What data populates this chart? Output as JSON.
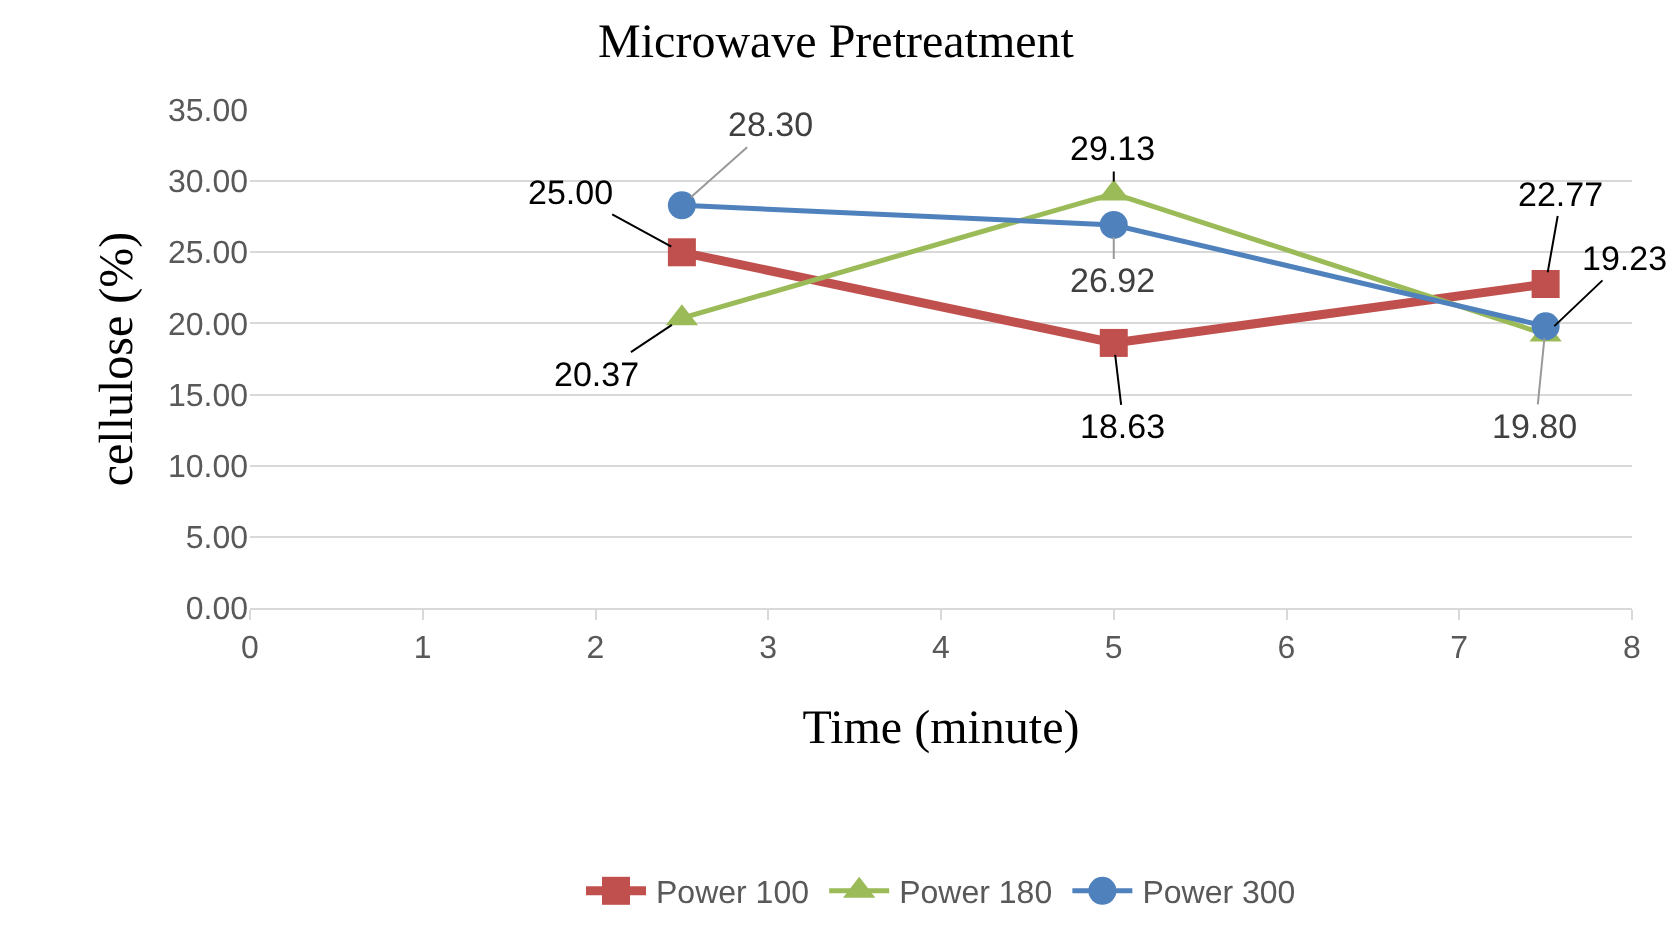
{
  "chart_data": {
    "type": "line",
    "title": "Microwave Pretreatment",
    "xlabel": "Time (minute)",
    "ylabel": "cellulose (%)",
    "x": [
      2.5,
      5,
      7.5
    ],
    "series": [
      {
        "name": "Power 100",
        "color": "#c0504d",
        "marker": "square",
        "values": [
          25.0,
          18.63,
          22.77
        ],
        "value_labels": [
          "25.00",
          "18.63",
          "22.77"
        ]
      },
      {
        "name": "Power 180",
        "color": "#9bbb59",
        "marker": "triangle",
        "values": [
          20.37,
          29.13,
          19.23
        ],
        "value_labels": [
          "20.37",
          "29.13",
          "19.23"
        ]
      },
      {
        "name": "Power 300",
        "color": "#4f81bd",
        "marker": "circle",
        "values": [
          28.3,
          26.92,
          19.8
        ],
        "value_labels": [
          "28.30",
          "26.92",
          "19.80"
        ]
      }
    ],
    "xlim": [
      0,
      8
    ],
    "xticks": [
      0,
      1,
      2,
      3,
      4,
      5,
      6,
      7,
      8
    ],
    "ylim": [
      0,
      35
    ],
    "yticks": [
      {
        "value": 0,
        "label": "0.00"
      },
      {
        "value": 5,
        "label": "5.00"
      },
      {
        "value": 10,
        "label": "10.00"
      },
      {
        "value": 15,
        "label": "15.00"
      },
      {
        "value": 20,
        "label": "20.00"
      },
      {
        "value": 25,
        "label": "25.00"
      },
      {
        "value": 30,
        "label": "30.00"
      },
      {
        "value": 35,
        "label": "35.00"
      }
    ],
    "grid": "y",
    "legend": "bottom"
  }
}
